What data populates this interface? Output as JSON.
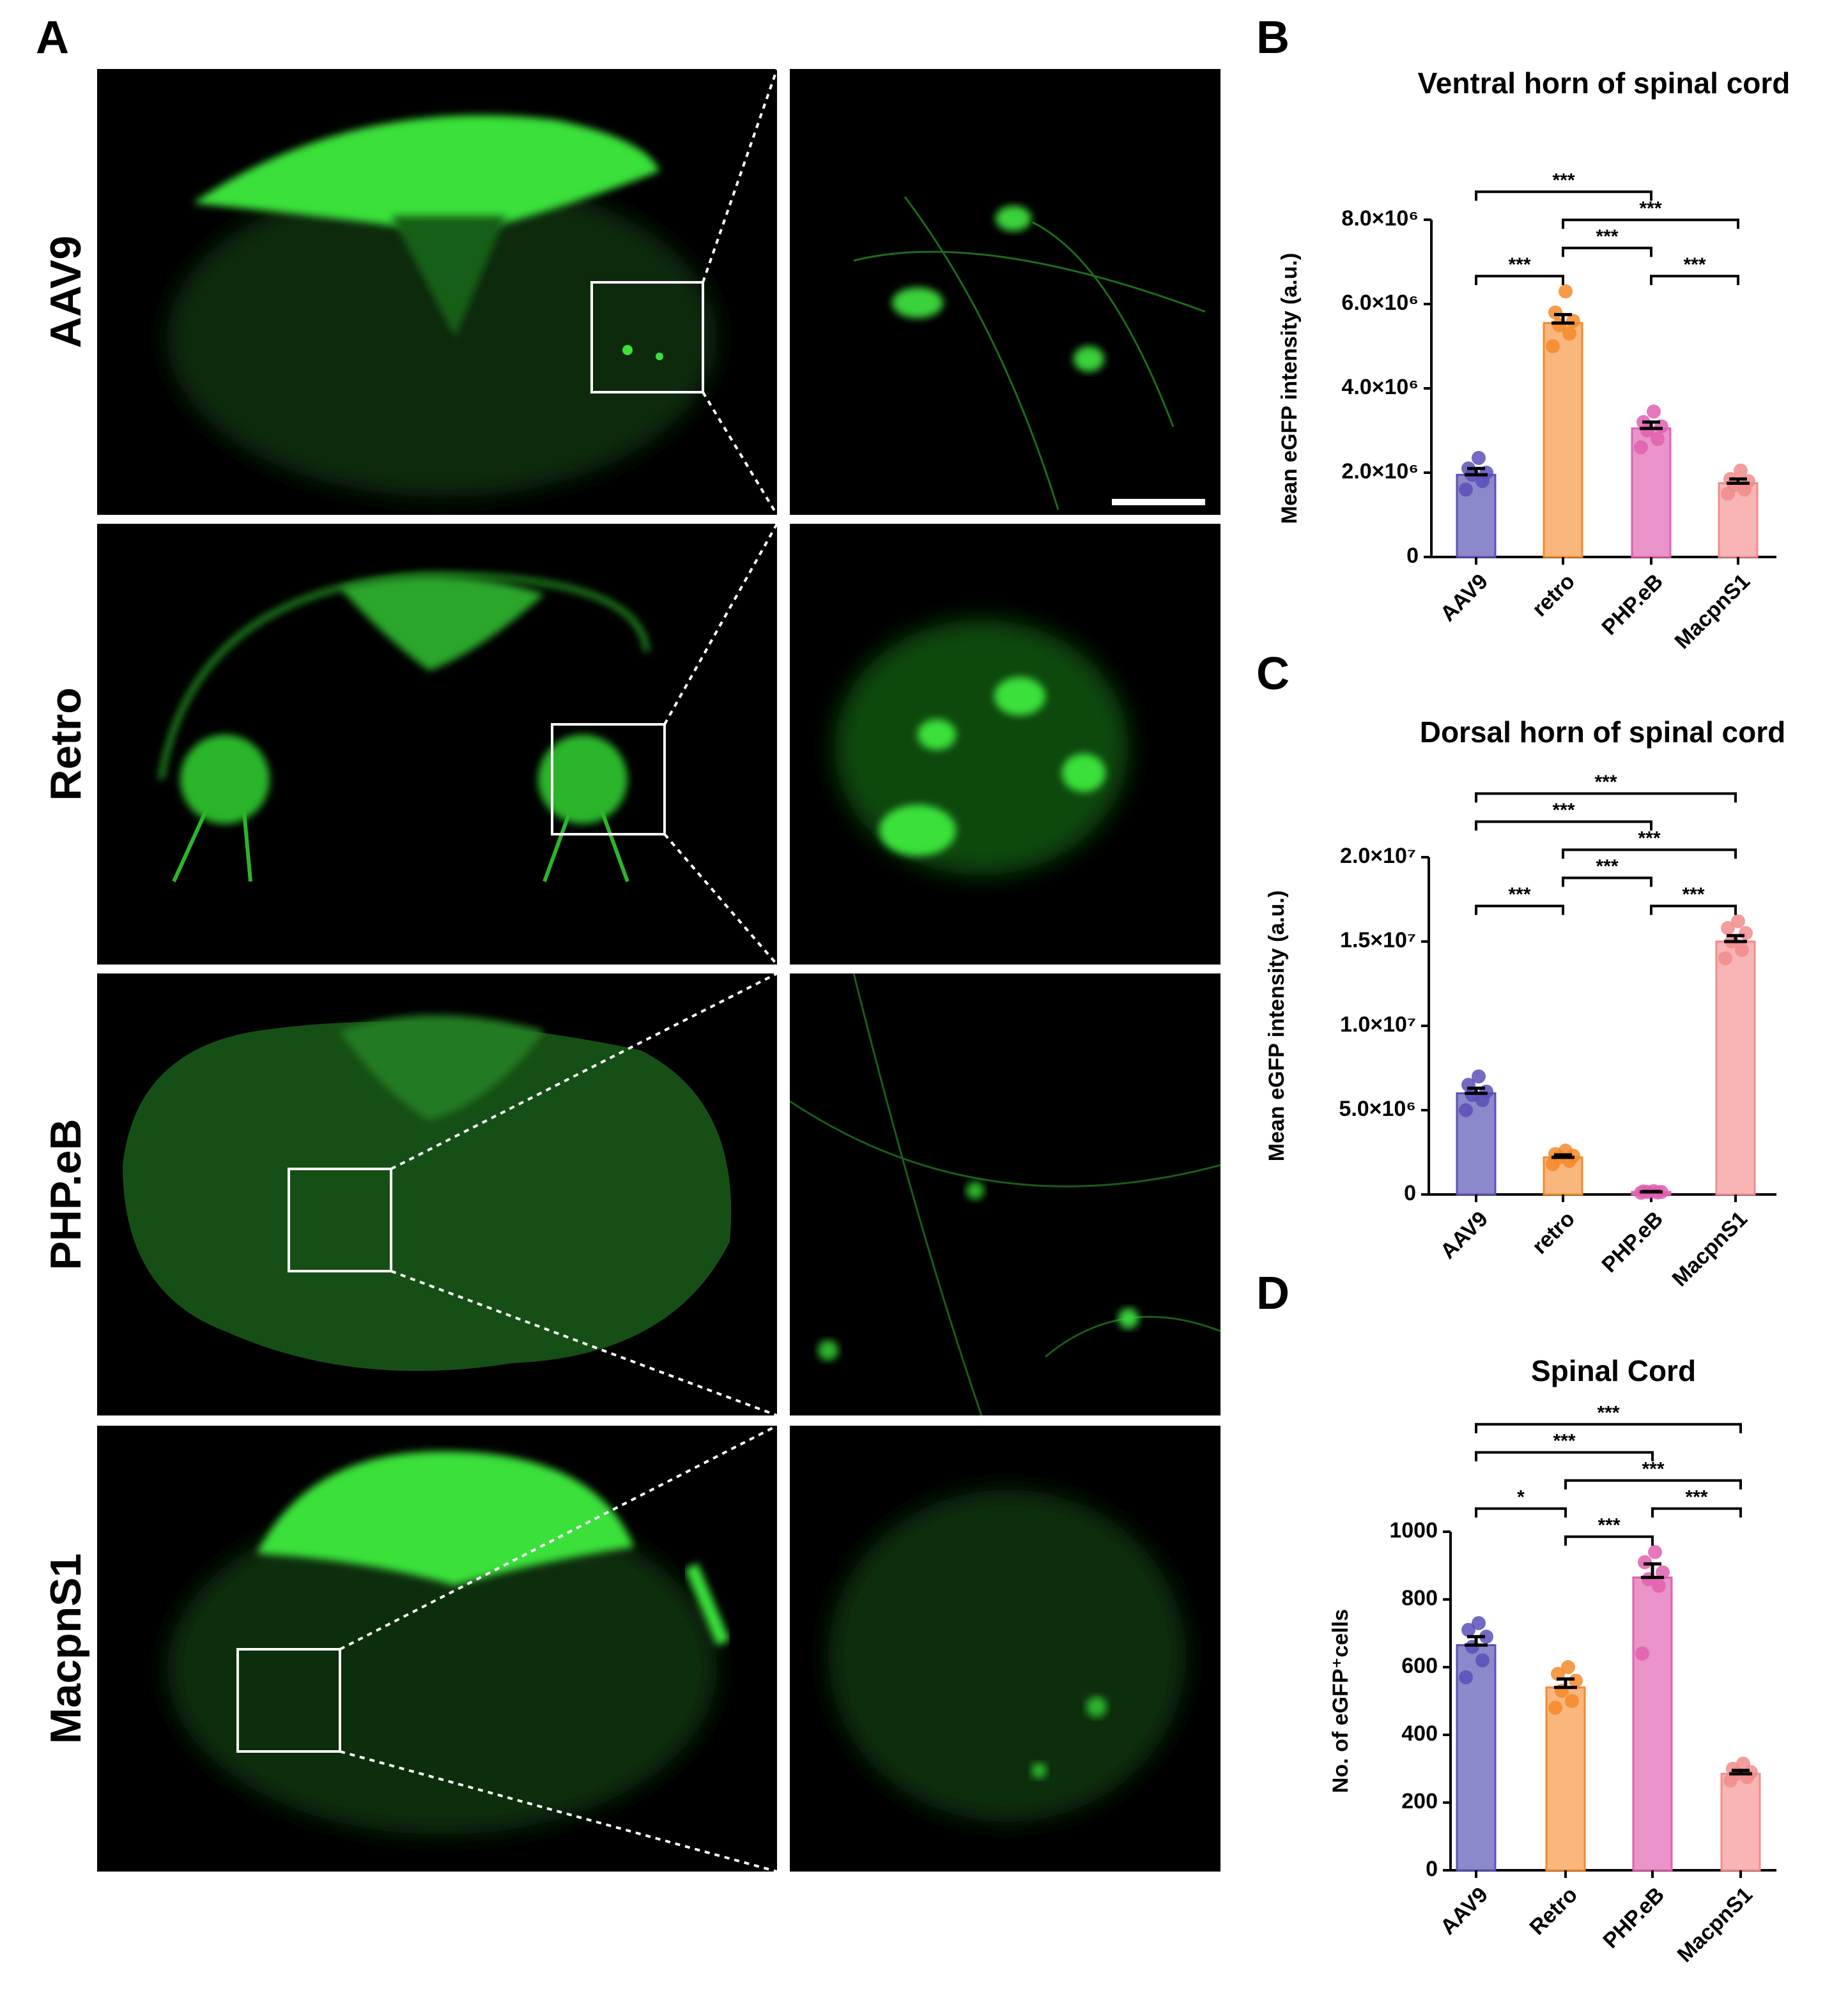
{
  "panel_labels": [
    "A",
    "B",
    "C",
    "D"
  ],
  "image_rows": [
    "AAV9",
    "Retro",
    "PHP.eB",
    "MacpnS1"
  ],
  "chart_data": [
    {
      "type": "bar",
      "title": "Ventral horn of spinal cord",
      "ylabel": "Mean eGFP intensity (a.u.)",
      "categories": [
        "AAV9",
        "retro",
        "PHP.eB",
        "MacpnS1"
      ],
      "values": [
        1950000,
        5550000,
        3050000,
        1750000
      ],
      "errors": [
        150000,
        200000,
        150000,
        100000
      ],
      "points": [
        [
          1600000,
          1800000,
          1950000,
          2000000,
          2100000,
          2350000
        ],
        [
          5000000,
          5300000,
          5500000,
          5600000,
          5800000,
          6300000
        ],
        [
          2600000,
          2800000,
          3000000,
          3100000,
          3200000,
          3450000
        ],
        [
          1500000,
          1600000,
          1700000,
          1800000,
          1850000,
          2050000
        ]
      ],
      "colors": [
        "#8b89c9",
        "#f9b67d",
        "#ea94c9",
        "#f9b5b5"
      ],
      "dot_colors": [
        "#5a50b8",
        "#f5892a",
        "#e060b0",
        "#f28c8c"
      ],
      "ylim": [
        0,
        8000000
      ],
      "yticks": [
        0,
        {
          "value": 2000000,
          "label": "2.0×10⁶"
        },
        {
          "value": 4000000,
          "label": "4.0×10⁶"
        },
        {
          "value": 6000000,
          "label": "6.0×10⁶"
        },
        {
          "value": 8000000,
          "label": "8.0×10⁶"
        }
      ],
      "comparisons": [
        {
          "from": "PHP.eB",
          "to": "MacpnS1",
          "label": "***"
        },
        {
          "from": "retro",
          "to": "PHP.eB",
          "label": "***"
        },
        {
          "from": "retro",
          "to": "MacpnS1",
          "label": "***"
        },
        {
          "from": "AAV9",
          "to": "retro",
          "label": "***"
        },
        {
          "from": "AAV9",
          "to": "PHP.eB",
          "label": "***"
        }
      ]
    },
    {
      "type": "bar",
      "title": "Dorsal horn of spinal cord",
      "ylabel": "Mean eGFP intensity (a.u.)",
      "categories": [
        "AAV9",
        "retro",
        "PHP.eB",
        "MacpnS1"
      ],
      "values": [
        6000000,
        2200000,
        150000,
        15000000
      ],
      "errors": [
        300000,
        150000,
        30000,
        350000
      ],
      "points": [
        [
          5000000,
          5600000,
          5900000,
          6100000,
          6500000,
          7000000
        ],
        [
          1800000,
          2000000,
          2200000,
          2300000,
          2400000,
          2600000
        ],
        [
          100000,
          120000,
          150000,
          150000,
          180000,
          200000
        ],
        [
          14000000,
          14500000,
          15000000,
          15500000,
          15800000,
          16200000
        ]
      ],
      "colors": [
        "#8b89c9",
        "#f9b67d",
        "#ea94c9",
        "#f9b5b5"
      ],
      "dot_colors": [
        "#5a50b8",
        "#f5892a",
        "#e060b0",
        "#f28c8c"
      ],
      "ylim": [
        0,
        20000000
      ],
      "yticks": [
        0,
        {
          "value": 5000000,
          "label": "5.0×10⁶"
        },
        {
          "value": 10000000,
          "label": "1.0×10⁷"
        },
        {
          "value": 15000000,
          "label": "1.5×10⁷"
        },
        {
          "value": 20000000,
          "label": "2.0×10⁷"
        }
      ],
      "comparisons": [
        {
          "from": "PHP.eB",
          "to": "MacpnS1",
          "label": "***"
        },
        {
          "from": "retro",
          "to": "PHP.eB",
          "label": "***"
        },
        {
          "from": "AAV9",
          "to": "retro",
          "label": "***"
        },
        {
          "from": "retro",
          "to": "MacpnS1",
          "label": "***"
        },
        {
          "from": "AAV9",
          "to": "PHP.eB",
          "label": "***"
        },
        {
          "from": "AAV9",
          "to": "MacpnS1",
          "label": "***"
        }
      ]
    },
    {
      "type": "bar",
      "title": "Spinal Cord",
      "ylabel": "No. of eGFP⁺cells",
      "categories": [
        "AAV9",
        "Retro",
        "PHP.eB",
        "MacpnS1"
      ],
      "values": [
        665,
        540,
        865,
        285
      ],
      "errors": [
        25,
        25,
        40,
        10
      ],
      "points": [
        [
          570,
          620,
          660,
          690,
          710,
          730
        ],
        [
          480,
          500,
          530,
          560,
          580,
          600
        ],
        [
          640,
          840,
          860,
          880,
          910,
          940
        ],
        [
          265,
          275,
          285,
          290,
          300,
          315
        ]
      ],
      "colors": [
        "#8b89c9",
        "#f9b67d",
        "#ea94c9",
        "#f9b5b5"
      ],
      "dot_colors": [
        "#5a50b8",
        "#f5892a",
        "#e060b0",
        "#f28c8c"
      ],
      "ylim": [
        0,
        1000
      ],
      "yticks": [
        0,
        200,
        400,
        600,
        800,
        1000
      ],
      "comparisons": [
        {
          "from": "Retro",
          "to": "PHP.eB",
          "label": "***"
        },
        {
          "from": "PHP.eB",
          "to": "MacpnS1",
          "label": "***"
        },
        {
          "from": "Retro",
          "to": "MacpnS1",
          "label": "***"
        },
        {
          "from": "AAV9",
          "to": "Retro",
          "label": "*"
        },
        {
          "from": "AAV9",
          "to": "PHP.eB",
          "label": "***"
        },
        {
          "from": "AAV9",
          "to": "MacpnS1",
          "label": "***"
        }
      ]
    }
  ]
}
